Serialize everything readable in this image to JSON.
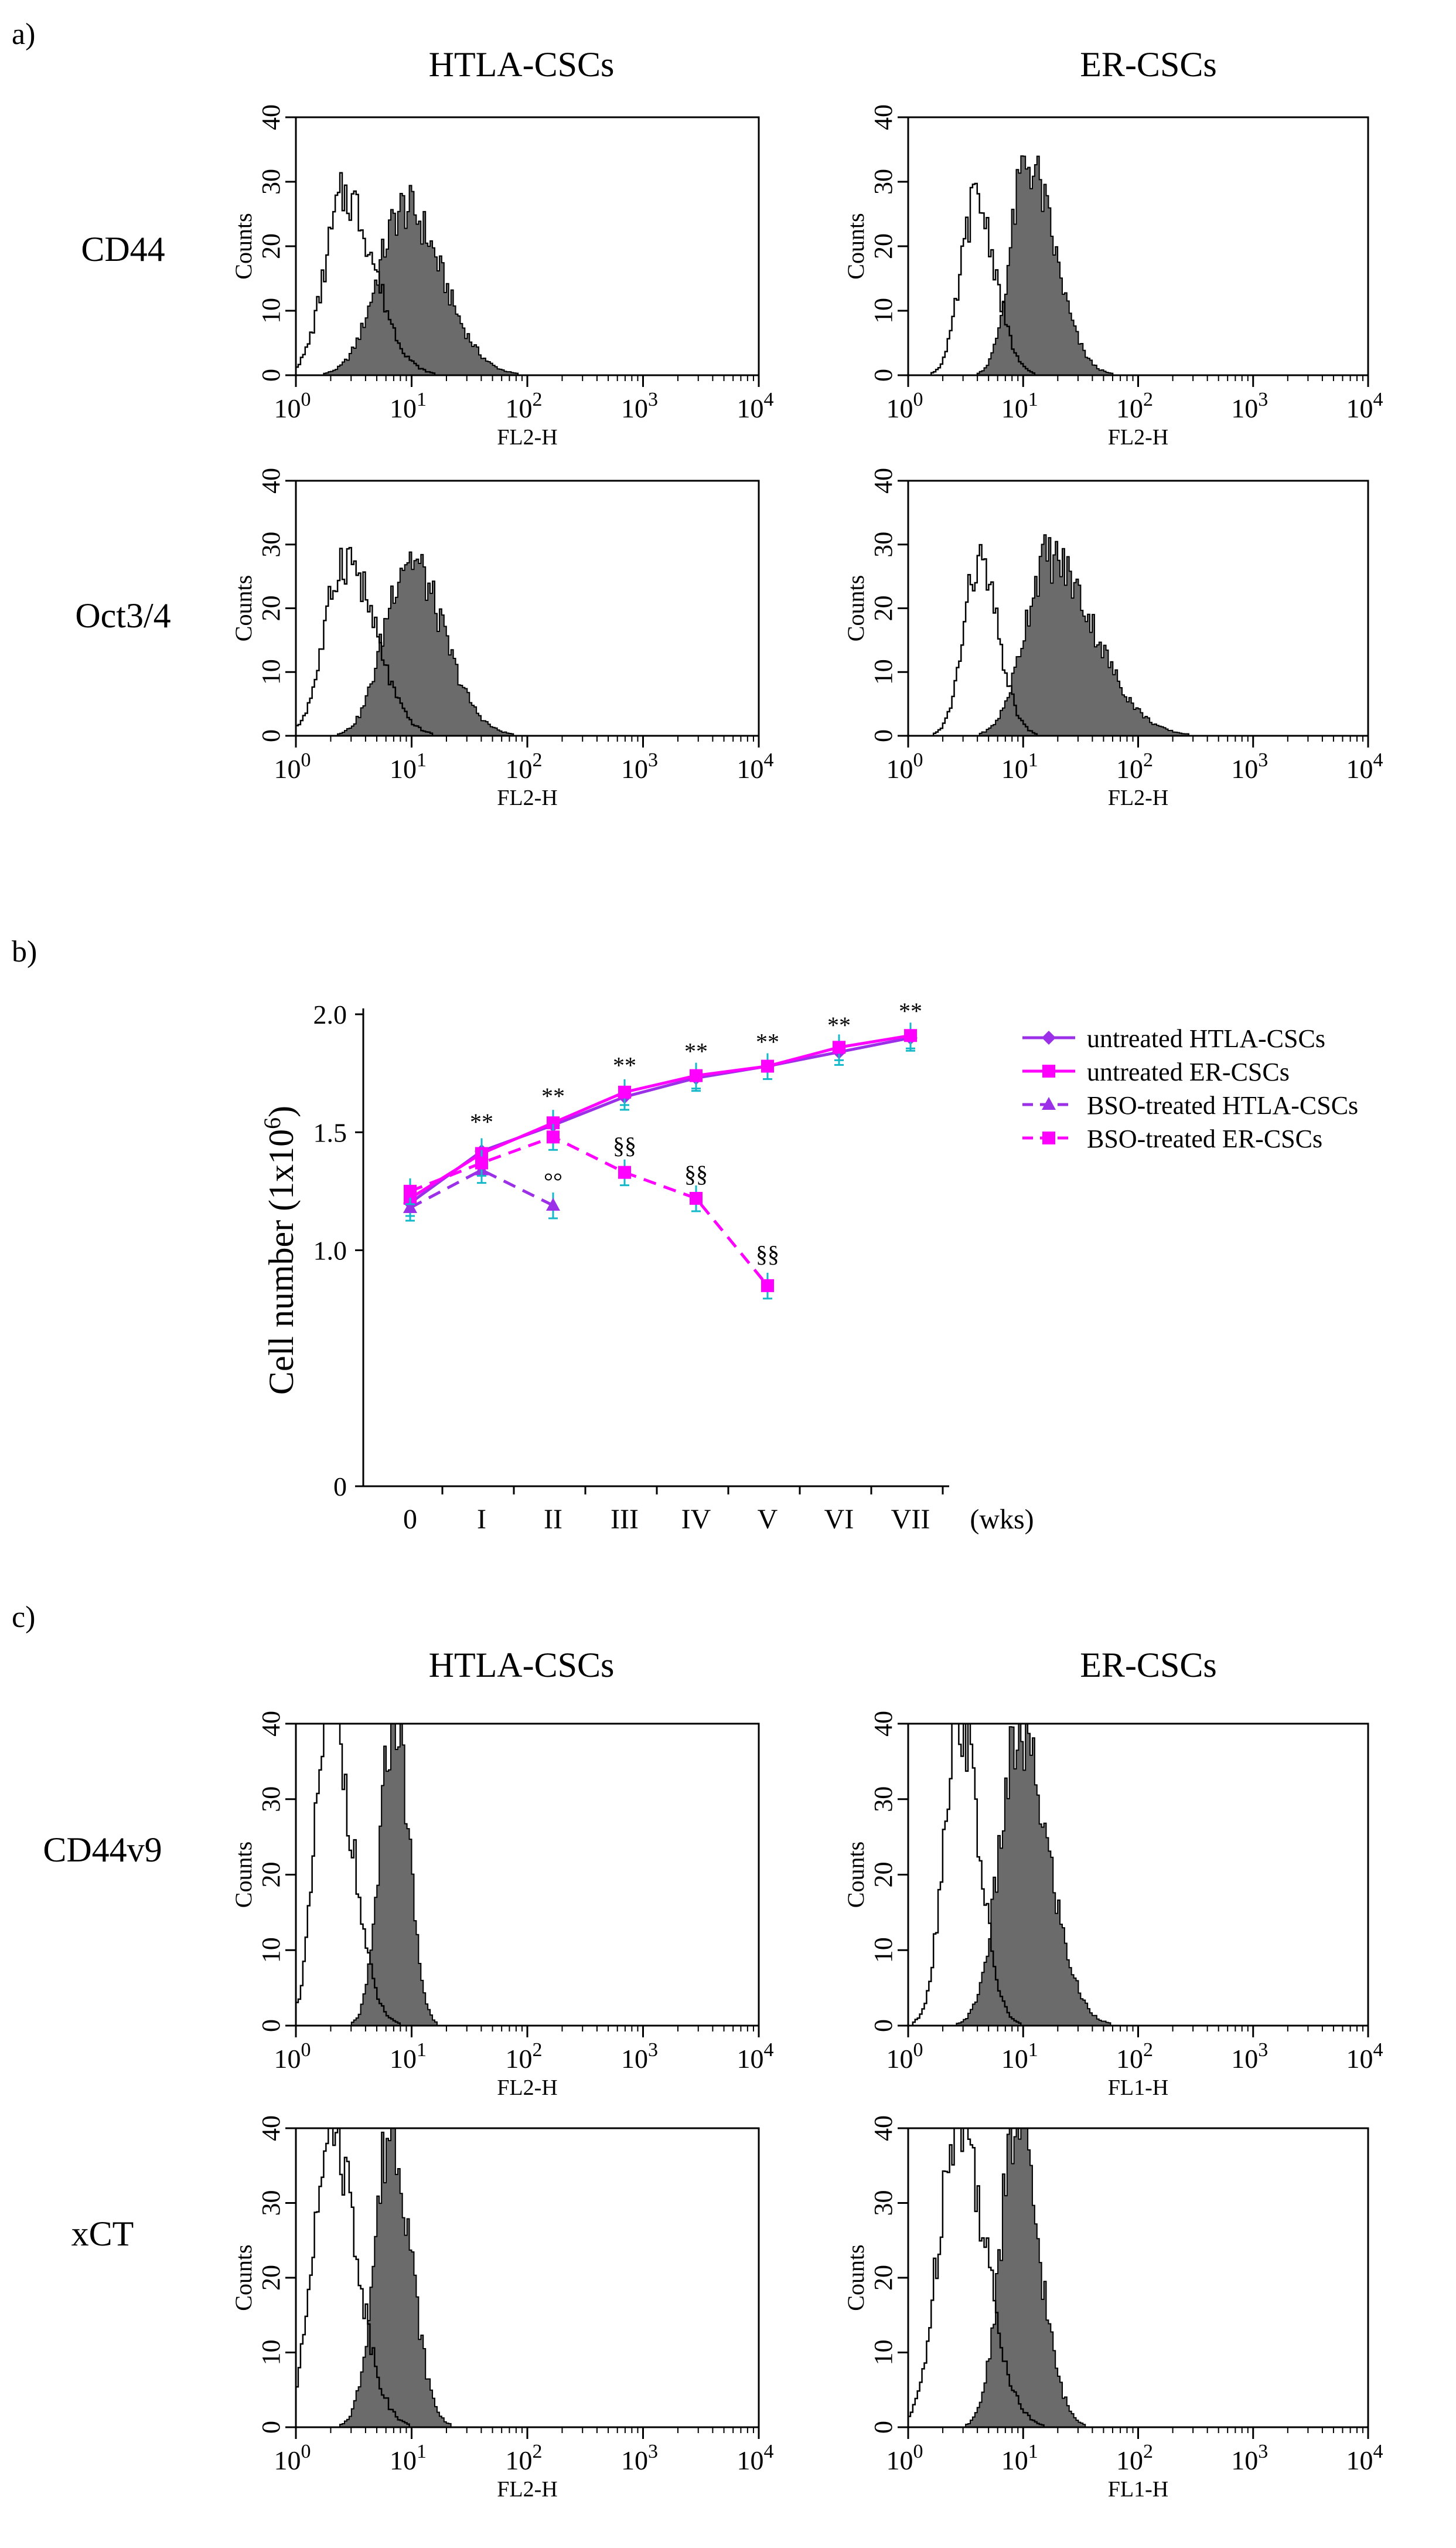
{
  "figure": {
    "panel_labels": [
      "a)",
      "b)",
      "c)"
    ],
    "units_suffix": "(wks)"
  },
  "chart_data": [
    {
      "type": "histogram-grid",
      "panel": "a)",
      "column_titles": [
        "HTLA-CSCs",
        "ER-CSCs"
      ],
      "row_labels": [
        "CD44",
        "Oct3/4"
      ],
      "ylabel": "Counts",
      "yticks": [
        0,
        10,
        20,
        30,
        40
      ],
      "ylim": [
        0,
        40
      ],
      "xscale": "log",
      "xlim": [
        1,
        10000
      ],
      "xtick_decades": [
        0,
        1,
        2,
        3,
        4
      ],
      "plots": [
        {
          "name": "CD44 HTLA-CSCs",
          "xlabel": "FL2-H",
          "control": {
            "peak_x": 2.6,
            "peak_count": 28,
            "log_sd": 0.17,
            "right_tail": 1.5
          },
          "stained": {
            "peak_x": 8.5,
            "peak_count": 26,
            "log_sd": 0.23,
            "right_tail": 1.4
          }
        },
        {
          "name": "CD44 ER-CSCs",
          "xlabel": "FL2-H",
          "control": {
            "peak_x": 3.8,
            "peak_count": 27,
            "log_sd": 0.13,
            "right_tail": 1.3
          },
          "stained": {
            "peak_x": 10.5,
            "peak_count": 33,
            "log_sd": 0.14,
            "right_tail": 1.7
          }
        },
        {
          "name": "Oct3/4 HTLA-CSCs",
          "xlabel": "FL2-H",
          "control": {
            "peak_x": 2.6,
            "peak_count": 28,
            "log_sd": 0.17,
            "right_tail": 1.5
          },
          "stained": {
            "peak_x": 9.0,
            "peak_count": 28,
            "log_sd": 0.2,
            "right_tail": 1.5
          }
        },
        {
          "name": "Oct3/4 ER-CSCs",
          "xlabel": "FL2-H",
          "control": {
            "peak_x": 4.0,
            "peak_count": 27,
            "log_sd": 0.13,
            "right_tail": 1.3
          },
          "stained": {
            "peak_x": 16.0,
            "peak_count": 28,
            "log_sd": 0.2,
            "right_tail": 2.0
          }
        }
      ]
    },
    {
      "type": "line",
      "panel": "b)",
      "ylabel": "Cell number (1x10",
      "ylabel_exponent": "6",
      "ylabel_close": ")",
      "ylim": [
        0,
        2.0
      ],
      "yticks": [
        0,
        1.0,
        1.5,
        2.0
      ],
      "ytick_labels": [
        "0",
        "1.0",
        "1.5",
        "2.0"
      ],
      "categories": [
        "0",
        "I",
        "II",
        "III",
        "IV",
        "V",
        "VI",
        "VII"
      ],
      "xlabel": "(wks)",
      "series": [
        {
          "name": "untreated HTLA-CSCs",
          "color": "#9b30e8",
          "dash": false,
          "marker": "diamond",
          "x": [
            0,
            1,
            2,
            3,
            4,
            5,
            6,
            7
          ],
          "values": [
            1.2,
            1.42,
            1.53,
            1.65,
            1.73,
            1.78,
            1.84,
            1.9
          ]
        },
        {
          "name": "untreated ER-CSCs",
          "color": "#ff00ff",
          "dash": false,
          "marker": "square",
          "x": [
            0,
            1,
            2,
            3,
            4,
            5,
            6,
            7
          ],
          "values": [
            1.22,
            1.41,
            1.54,
            1.67,
            1.74,
            1.78,
            1.86,
            1.91
          ]
        },
        {
          "name": "BSO-treated HTLA-CSCs",
          "color": "#9b30e8",
          "dash": true,
          "marker": "triangle",
          "x": [
            0,
            1,
            2
          ],
          "values": [
            1.18,
            1.34,
            1.19
          ]
        },
        {
          "name": "BSO-treated ER-CSCs",
          "color": "#ff00ff",
          "dash": true,
          "marker": "square",
          "x": [
            0,
            1,
            2,
            3,
            4,
            5
          ],
          "values": [
            1.25,
            1.37,
            1.48,
            1.33,
            1.22,
            0.85
          ]
        }
      ],
      "annotations": [
        {
          "text": "**",
          "x": 1,
          "y": 1.51
        },
        {
          "text": "**",
          "x": 2,
          "y": 1.62
        },
        {
          "text": "**",
          "x": 3,
          "y": 1.75
        },
        {
          "text": "**",
          "x": 4,
          "y": 1.81
        },
        {
          "text": "**",
          "x": 5,
          "y": 1.85
        },
        {
          "text": "**",
          "x": 6,
          "y": 1.92
        },
        {
          "text": "**",
          "x": 7,
          "y": 1.98
        },
        {
          "text": "°°",
          "x": 2,
          "y": 1.26
        },
        {
          "text": "§§",
          "x": 3,
          "y": 1.41
        },
        {
          "text": "§§",
          "x": 4,
          "y": 1.29
        },
        {
          "text": "§§",
          "x": 5,
          "y": 0.95
        }
      ]
    },
    {
      "type": "histogram-grid",
      "panel": "c)",
      "column_titles": [
        "HTLA-CSCs",
        "ER-CSCs"
      ],
      "row_labels": [
        "CD44v9",
        "xCT"
      ],
      "ylabel": "Counts",
      "yticks": [
        0,
        10,
        20,
        30,
        40
      ],
      "ylim": [
        0,
        40
      ],
      "xscale": "log",
      "xlim": [
        1,
        10000
      ],
      "xtick_decades": [
        0,
        1,
        2,
        3,
        4
      ],
      "plots": [
        {
          "name": "CD44v9 HTLA-CSCs",
          "xlabel": "FL2-H",
          "control": {
            "peak_x": 1.9,
            "peak_count": 42,
            "log_sd": 0.12,
            "right_tail": 1.6
          },
          "stained": {
            "peak_x": 7.0,
            "peak_count": 42,
            "log_sd": 0.12,
            "right_tail": 1.0
          }
        },
        {
          "name": "CD44v9 ER-CSCs",
          "xlabel": "FL1-H",
          "control": {
            "peak_x": 2.7,
            "peak_count": 42,
            "log_sd": 0.13,
            "right_tail": 1.3
          },
          "stained": {
            "peak_x": 9.0,
            "peak_count": 38,
            "log_sd": 0.17,
            "right_tail": 1.5
          }
        },
        {
          "name": "xCT HTLA-CSCs",
          "xlabel": "FL2-H",
          "control": {
            "peak_x": 1.9,
            "peak_count": 42,
            "log_sd": 0.14,
            "right_tail": 1.6
          },
          "stained": {
            "peak_x": 6.5,
            "peak_count": 40,
            "log_sd": 0.14,
            "right_tail": 1.2
          }
        },
        {
          "name": "xCT ER-CSCs",
          "xlabel": "FL1-H",
          "control": {
            "peak_x": 2.6,
            "peak_count": 42,
            "log_sd": 0.16,
            "right_tail": 1.5
          },
          "stained": {
            "peak_x": 8.5,
            "peak_count": 40,
            "log_sd": 0.14,
            "right_tail": 1.4
          }
        }
      ]
    }
  ]
}
